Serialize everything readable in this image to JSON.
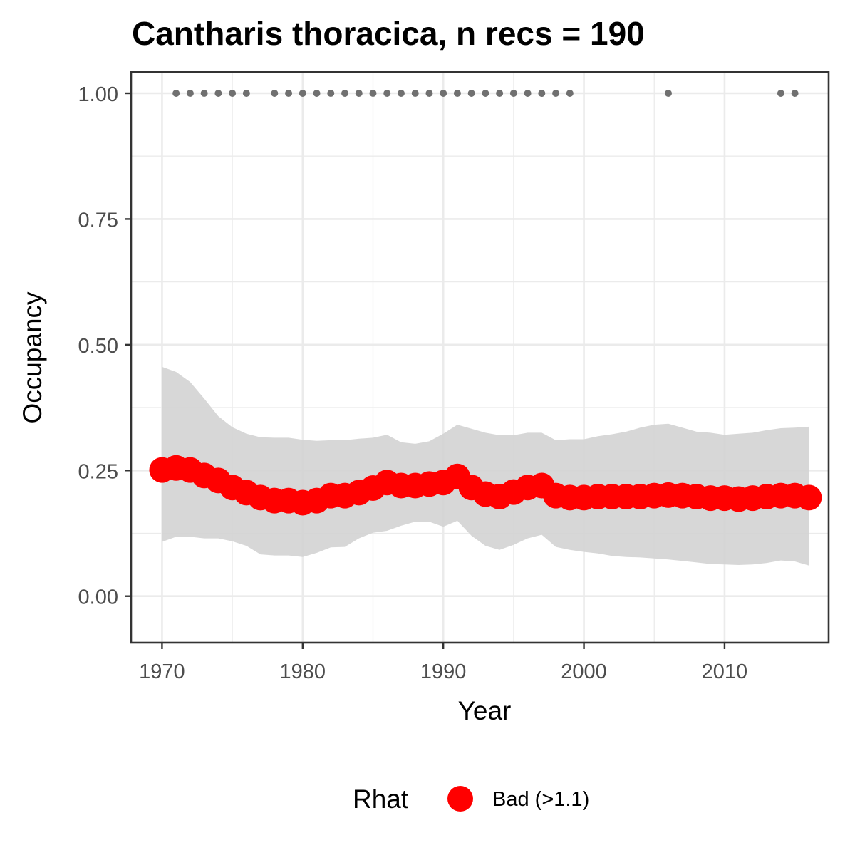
{
  "chart_data": {
    "type": "line",
    "title": "Cantharis thoracica, n recs = 190",
    "xlabel": "Year",
    "ylabel": "Occupancy",
    "xlim": [
      1967.8,
      2017.4
    ],
    "ylim": [
      -0.0925,
      1.0425
    ],
    "xticks": [
      1970,
      1980,
      1990,
      2000,
      2010
    ],
    "xtick_labels": [
      "1970",
      "1980",
      "1990",
      "2000",
      "2010"
    ],
    "yticks": [
      0,
      0.25,
      0.5,
      0.75,
      1.0
    ],
    "ytick_labels": [
      "0.00",
      "0.25",
      "0.50",
      "0.75",
      "1.00"
    ],
    "grid": true,
    "legend_position": "bottom",
    "legend": {
      "title": "Rhat",
      "entries": [
        {
          "label": "Bad (>1.1)",
          "color": "#ff0000"
        }
      ]
    },
    "colors": {
      "mean": "#ff0000",
      "ribbon": "#d3d3d3",
      "records": "#707070",
      "panel_border": "#333333",
      "grid": "#ebebeb"
    },
    "x": [
      1970,
      1971,
      1972,
      1973,
      1974,
      1975,
      1976,
      1977,
      1978,
      1979,
      1980,
      1981,
      1982,
      1983,
      1984,
      1985,
      1986,
      1987,
      1988,
      1989,
      1990,
      1991,
      1992,
      1993,
      1994,
      1995,
      1996,
      1997,
      1998,
      1999,
      2000,
      2001,
      2002,
      2003,
      2004,
      2005,
      2006,
      2007,
      2008,
      2009,
      2010,
      2011,
      2012,
      2013,
      2014,
      2015,
      2016
    ],
    "series": [
      {
        "values": [
          0.251,
          0.255,
          0.251,
          0.24,
          0.23,
          0.216,
          0.206,
          0.196,
          0.19,
          0.19,
          0.186,
          0.19,
          0.2,
          0.2,
          0.206,
          0.215,
          0.226,
          0.22,
          0.22,
          0.223,
          0.226,
          0.238,
          0.216,
          0.203,
          0.198,
          0.207,
          0.216,
          0.22,
          0.2,
          0.196,
          0.196,
          0.198,
          0.198,
          0.198,
          0.198,
          0.2,
          0.201,
          0.2,
          0.198,
          0.195,
          0.195,
          0.193,
          0.195,
          0.198,
          0.2,
          0.2,
          0.196
        ]
      }
    ],
    "ribbon_lower": [
      0.108,
      0.118,
      0.118,
      0.115,
      0.115,
      0.109,
      0.1,
      0.083,
      0.081,
      0.081,
      0.078,
      0.086,
      0.097,
      0.098,
      0.115,
      0.126,
      0.13,
      0.14,
      0.148,
      0.148,
      0.138,
      0.15,
      0.12,
      0.1,
      0.092,
      0.102,
      0.115,
      0.122,
      0.098,
      0.092,
      0.088,
      0.085,
      0.08,
      0.078,
      0.077,
      0.075,
      0.073,
      0.07,
      0.067,
      0.064,
      0.063,
      0.062,
      0.063,
      0.066,
      0.071,
      0.069,
      0.061
    ],
    "ribbon_upper": [
      0.456,
      0.446,
      0.426,
      0.393,
      0.358,
      0.336,
      0.323,
      0.316,
      0.315,
      0.315,
      0.311,
      0.309,
      0.31,
      0.31,
      0.313,
      0.315,
      0.321,
      0.306,
      0.303,
      0.308,
      0.323,
      0.341,
      0.333,
      0.325,
      0.32,
      0.32,
      0.325,
      0.325,
      0.31,
      0.312,
      0.312,
      0.318,
      0.322,
      0.327,
      0.335,
      0.341,
      0.343,
      0.335,
      0.327,
      0.325,
      0.321,
      0.323,
      0.325,
      0.33,
      0.334,
      0.335,
      0.337
    ],
    "record_years": [
      1971,
      1972,
      1973,
      1974,
      1975,
      1976,
      1978,
      1979,
      1980,
      1981,
      1982,
      1983,
      1984,
      1985,
      1986,
      1987,
      1988,
      1989,
      1990,
      1991,
      1992,
      1993,
      1994,
      1995,
      1996,
      1997,
      1998,
      1999,
      2006,
      2014,
      2015
    ],
    "record_value": 1.0
  }
}
